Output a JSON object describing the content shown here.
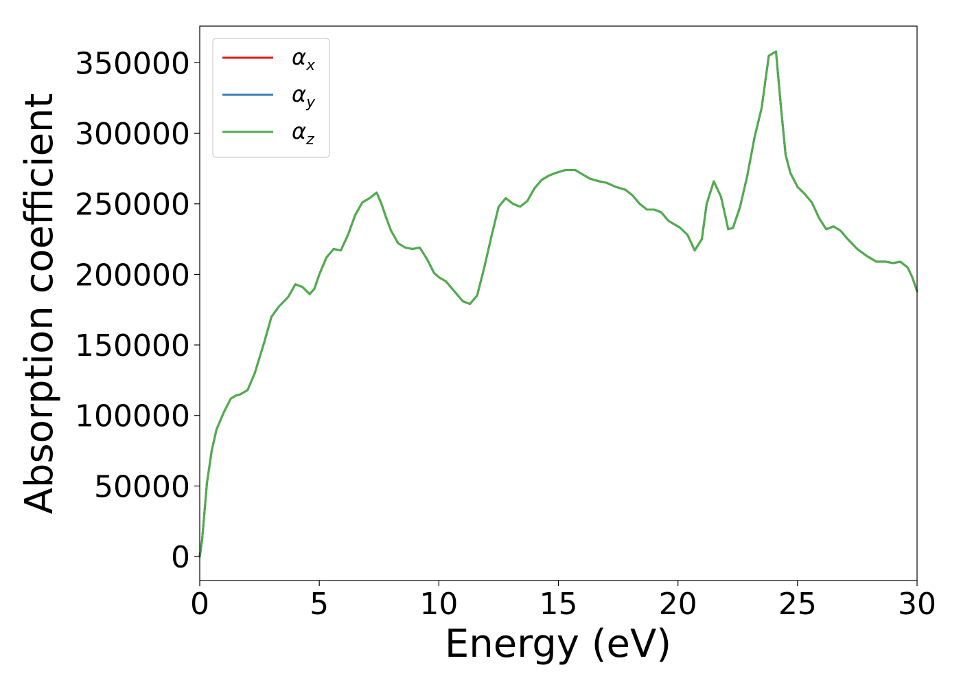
{
  "chart_data": {
    "type": "line",
    "title": "",
    "xlabel": "Energy (eV)",
    "ylabel": "Absorption coefficient",
    "xlim": [
      0,
      30
    ],
    "ylim": [
      -17000,
      376000
    ],
    "xticks": [
      0,
      5,
      10,
      15,
      20,
      25,
      30
    ],
    "xtick_labels": [
      "0",
      "5",
      "10",
      "15",
      "20",
      "25",
      "30"
    ],
    "yticks": [
      0,
      50000,
      100000,
      150000,
      200000,
      250000,
      300000,
      350000
    ],
    "ytick_labels": [
      "0",
      "50000",
      "100000",
      "150000",
      "200000",
      "250000",
      "300000",
      "350000"
    ],
    "grid": false,
    "legend": "top-left",
    "x": [
      0,
      0.1,
      0.2,
      0.3,
      0.5,
      0.7,
      1.0,
      1.3,
      1.5,
      1.7,
      2.0,
      2.3,
      2.7,
      3.0,
      3.3,
      3.7,
      4.0,
      4.3,
      4.6,
      4.8,
      5.0,
      5.3,
      5.6,
      5.9,
      6.2,
      6.5,
      6.8,
      7.1,
      7.4,
      7.6,
      7.8,
      8.0,
      8.3,
      8.6,
      8.9,
      9.2,
      9.5,
      9.8,
      10.0,
      10.3,
      10.7,
      11.0,
      11.3,
      11.6,
      11.9,
      12.2,
      12.5,
      12.8,
      13.1,
      13.4,
      13.7,
      14.0,
      14.3,
      14.6,
      14.9,
      15.3,
      15.7,
      16.0,
      16.3,
      16.7,
      17.0,
      17.4,
      17.8,
      18.1,
      18.4,
      18.7,
      19.0,
      19.3,
      19.6,
      19.9,
      20.1,
      20.4,
      20.7,
      21.0,
      21.2,
      21.5,
      21.8,
      22.0,
      22.1,
      22.3,
      22.6,
      22.9,
      23.2,
      23.5,
      23.8,
      24.1,
      24.3,
      24.5,
      24.7,
      25.0,
      25.3,
      25.6,
      25.9,
      26.2,
      26.5,
      26.8,
      27.1,
      27.5,
      27.9,
      28.3,
      28.7,
      29.0,
      29.3,
      29.6,
      29.8,
      30.0
    ],
    "series": [
      {
        "name": "α_x",
        "name_main": "α",
        "name_sub": "x",
        "color": "#e41a1c",
        "values": [
          0,
          12000,
          32000,
          52000,
          75000,
          90000,
          102000,
          112000,
          114000,
          115000,
          118000,
          130000,
          152000,
          170000,
          177000,
          184000,
          193000,
          191000,
          186000,
          190000,
          200000,
          212000,
          218000,
          217000,
          228000,
          242000,
          251000,
          254000,
          258000,
          250000,
          240000,
          231000,
          222000,
          219000,
          218000,
          219000,
          211000,
          201000,
          198000,
          195000,
          187000,
          181000,
          179000,
          185000,
          205000,
          227000,
          248000,
          254000,
          250000,
          248000,
          252000,
          261000,
          267000,
          270000,
          272000,
          274000,
          274000,
          271000,
          268000,
          266000,
          265000,
          262000,
          260000,
          256000,
          250000,
          246000,
          246000,
          244000,
          238000,
          235000,
          233000,
          228000,
          217000,
          225000,
          250000,
          266000,
          255000,
          240000,
          232000,
          233000,
          248000,
          270000,
          297000,
          318000,
          355000,
          358000,
          320000,
          285000,
          272000,
          262000,
          257000,
          251000,
          240000,
          232000,
          234000,
          231000,
          225000,
          218000,
          213000,
          209000,
          209000,
          208000,
          209000,
          205000,
          198000,
          188000
        ]
      },
      {
        "name": "α_y",
        "name_main": "α",
        "name_sub": "y",
        "color": "#377eb8",
        "values": [
          0,
          12000,
          32000,
          52000,
          75000,
          90000,
          102000,
          112000,
          114000,
          115000,
          118000,
          130000,
          152000,
          170000,
          177000,
          184000,
          193000,
          191000,
          186000,
          190000,
          200000,
          212000,
          218000,
          217000,
          228000,
          242000,
          251000,
          254000,
          258000,
          250000,
          240000,
          231000,
          222000,
          219000,
          218000,
          219000,
          211000,
          201000,
          198000,
          195000,
          187000,
          181000,
          179000,
          185000,
          205000,
          227000,
          248000,
          254000,
          250000,
          248000,
          252000,
          261000,
          267000,
          270000,
          272000,
          274000,
          274000,
          271000,
          268000,
          266000,
          265000,
          262000,
          260000,
          256000,
          250000,
          246000,
          246000,
          244000,
          238000,
          235000,
          233000,
          228000,
          217000,
          225000,
          250000,
          266000,
          255000,
          240000,
          232000,
          233000,
          248000,
          270000,
          297000,
          318000,
          355000,
          358000,
          320000,
          285000,
          272000,
          262000,
          257000,
          251000,
          240000,
          232000,
          234000,
          231000,
          225000,
          218000,
          213000,
          209000,
          209000,
          208000,
          209000,
          205000,
          198000,
          188000
        ]
      },
      {
        "name": "α_z",
        "name_main": "α",
        "name_sub": "z",
        "color": "#4daf4a",
        "values": [
          0,
          12000,
          32000,
          52000,
          75000,
          90000,
          102000,
          112000,
          114000,
          115000,
          118000,
          130000,
          152000,
          170000,
          177000,
          184000,
          193000,
          191000,
          186000,
          190000,
          200000,
          212000,
          218000,
          217000,
          228000,
          242000,
          251000,
          254000,
          258000,
          250000,
          240000,
          231000,
          222000,
          219000,
          218000,
          219000,
          211000,
          201000,
          198000,
          195000,
          187000,
          181000,
          179000,
          185000,
          205000,
          227000,
          248000,
          254000,
          250000,
          248000,
          252000,
          261000,
          267000,
          270000,
          272000,
          274000,
          274000,
          271000,
          268000,
          266000,
          265000,
          262000,
          260000,
          256000,
          250000,
          246000,
          246000,
          244000,
          238000,
          235000,
          233000,
          228000,
          217000,
          225000,
          250000,
          266000,
          255000,
          240000,
          232000,
          233000,
          248000,
          270000,
          297000,
          318000,
          355000,
          358000,
          320000,
          285000,
          272000,
          262000,
          257000,
          251000,
          240000,
          232000,
          234000,
          231000,
          225000,
          218000,
          213000,
          209000,
          209000,
          208000,
          209000,
          205000,
          198000,
          188000
        ]
      }
    ]
  }
}
